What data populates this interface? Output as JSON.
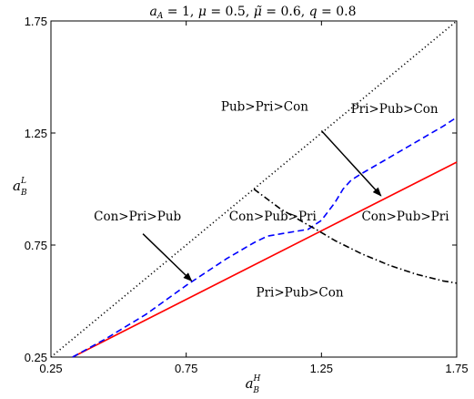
{
  "chart_data": {
    "type": "line",
    "title": "a_A = 1, μ = 0.5, μ̃ = 0.6, q = 0.8",
    "title_parts": {
      "a": "a",
      "a_sub": "A",
      "a_eq": " = 1, ",
      "mu": "μ",
      "mu_eq": " = 0.5, ",
      "mutilde": "μ̃",
      "mutilde_eq": " = 0.6, ",
      "q": "q",
      "q_eq": " = 0.8"
    },
    "xlabel": {
      "base": "a",
      "sup": "H",
      "sub": "B"
    },
    "ylabel": {
      "base": "a",
      "sup": "L",
      "sub": "B"
    },
    "xlim": [
      0.25,
      1.75
    ],
    "ylim": [
      0.25,
      1.75
    ],
    "xticks": [
      0.25,
      0.75,
      1.25,
      1.75
    ],
    "yticks": [
      0.25,
      0.75,
      1.25,
      1.75
    ],
    "xtick_labels": [
      "0.25",
      "0.75",
      "1.25",
      "1.75"
    ],
    "ytick_labels": [
      "0.25",
      "0.75",
      "1.25",
      "1.75"
    ],
    "grid": false,
    "series": [
      {
        "style": "dotted",
        "color": "#000000",
        "x": [
          0.25,
          1.75
        ],
        "y": [
          0.25,
          1.75
        ]
      },
      {
        "style": "solid",
        "color": "#ff0000",
        "x": [
          0.33,
          1.75
        ],
        "y": [
          0.25,
          1.12
        ]
      },
      {
        "style": "dashed",
        "color": "#0000ff",
        "x": [
          0.33,
          0.45,
          0.6,
          0.75,
          0.9,
          1.0,
          1.05,
          1.1,
          1.15,
          1.2,
          1.25,
          1.3,
          1.33,
          1.36,
          1.4,
          1.5,
          1.6,
          1.7,
          1.75
        ],
        "y": [
          0.25,
          0.33,
          0.44,
          0.57,
          0.69,
          0.76,
          0.79,
          0.8,
          0.81,
          0.82,
          0.86,
          0.94,
          1.0,
          1.04,
          1.07,
          1.14,
          1.21,
          1.28,
          1.32
        ]
      },
      {
        "style": "dashdot",
        "color": "#000000",
        "x": [
          1.0,
          1.1,
          1.2,
          1.23,
          1.3,
          1.4,
          1.5,
          1.6,
          1.7,
          1.75
        ],
        "y": [
          1.0,
          0.91,
          0.84,
          0.82,
          0.77,
          0.71,
          0.66,
          0.62,
          0.59,
          0.58
        ]
      }
    ],
    "annotations": [
      {
        "text": "Pub>Pri>Con",
        "x": 1.04,
        "y": 1.35,
        "arrow_to": null
      },
      {
        "text": "Pri>Pub>Con",
        "x": 1.52,
        "y": 1.34,
        "arrow_to": null
      },
      {
        "text": "Con>Pri>Pub",
        "x": 0.57,
        "y": 0.86,
        "arrow_to": null
      },
      {
        "text": "Con>Pub>Pri",
        "x": 1.07,
        "y": 0.86,
        "arrow_to": null
      },
      {
        "text": "Con>Pub>Pri",
        "x": 1.56,
        "y": 0.86,
        "arrow_to": null
      },
      {
        "text": "Pri>Pub>Con",
        "x": 1.17,
        "y": 0.52,
        "arrow_to": null
      }
    ],
    "arrows": [
      {
        "from": [
          1.25,
          1.26
        ],
        "to": [
          1.47,
          0.97
        ]
      },
      {
        "from": [
          0.59,
          0.8
        ],
        "to": [
          0.77,
          0.59
        ]
      }
    ]
  }
}
